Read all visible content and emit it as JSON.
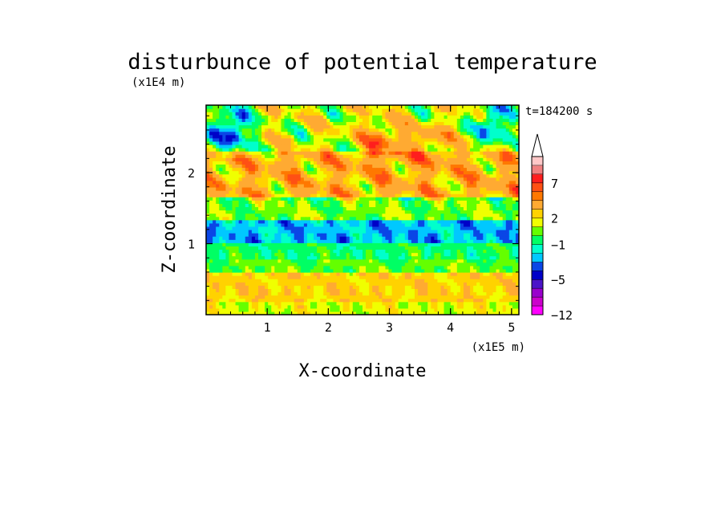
{
  "chart_data": {
    "type": "heatmap",
    "title": "disturbunce of potential temperature",
    "xlabel": "X-coordinate",
    "ylabel": "Z-coordinate",
    "x_unit_label": "(x1E5 m)",
    "y_unit_label": "(x1E4 m)",
    "time_label": "t=184200 s",
    "xlim": [
      0,
      5.12
    ],
    "ylim": [
      0,
      2.95
    ],
    "x_ticks": [
      1,
      2,
      3,
      4,
      5
    ],
    "x_tick_labels": [
      "1",
      "2",
      "3",
      "4",
      "5"
    ],
    "y_ticks": [
      1,
      2
    ],
    "y_tick_labels": [
      "1",
      "2"
    ],
    "colorbar": {
      "levels": [
        -12,
        -10,
        -8,
        -6,
        -5,
        -4,
        -3,
        -2,
        -1,
        0,
        1,
        2,
        3,
        5,
        6,
        7,
        8,
        9,
        10
      ],
      "colors": [
        "#ff00ff",
        "#cc00cc",
        "#9900cc",
        "#4b14c8",
        "#0000c8",
        "#0a46e6",
        "#00c8ff",
        "#00ffcc",
        "#00ff64",
        "#64ff00",
        "#f0ff00",
        "#ffd200",
        "#ffaa32",
        "#ff7800",
        "#ff5014",
        "#ff1e1e",
        "#f08080",
        "#ffc8c8"
      ],
      "tick_labels": [
        "7",
        "2",
        "−1",
        "−5",
        "−12"
      ],
      "tick_values": [
        7,
        2,
        -1,
        -5,
        -12
      ],
      "extend": "max"
    },
    "bands": [
      {
        "z_range": [
          0.0,
          0.18
        ],
        "value": 1.5
      },
      {
        "z_range": [
          0.18,
          0.6
        ],
        "value": 2.5
      },
      {
        "z_range": [
          0.6,
          0.8
        ],
        "value": 0.3
      },
      {
        "z_range": [
          0.8,
          1.0
        ],
        "value": -0.5
      },
      {
        "z_range": [
          1.0,
          1.35
        ],
        "value": -2.5
      },
      {
        "z_range": [
          1.35,
          1.65
        ],
        "value": 0.5
      },
      {
        "z_range": [
          1.65,
          2.3
        ],
        "value": 3.5
      },
      {
        "z_range": [
          2.3,
          2.95
        ],
        "value": 1.5
      }
    ]
  }
}
